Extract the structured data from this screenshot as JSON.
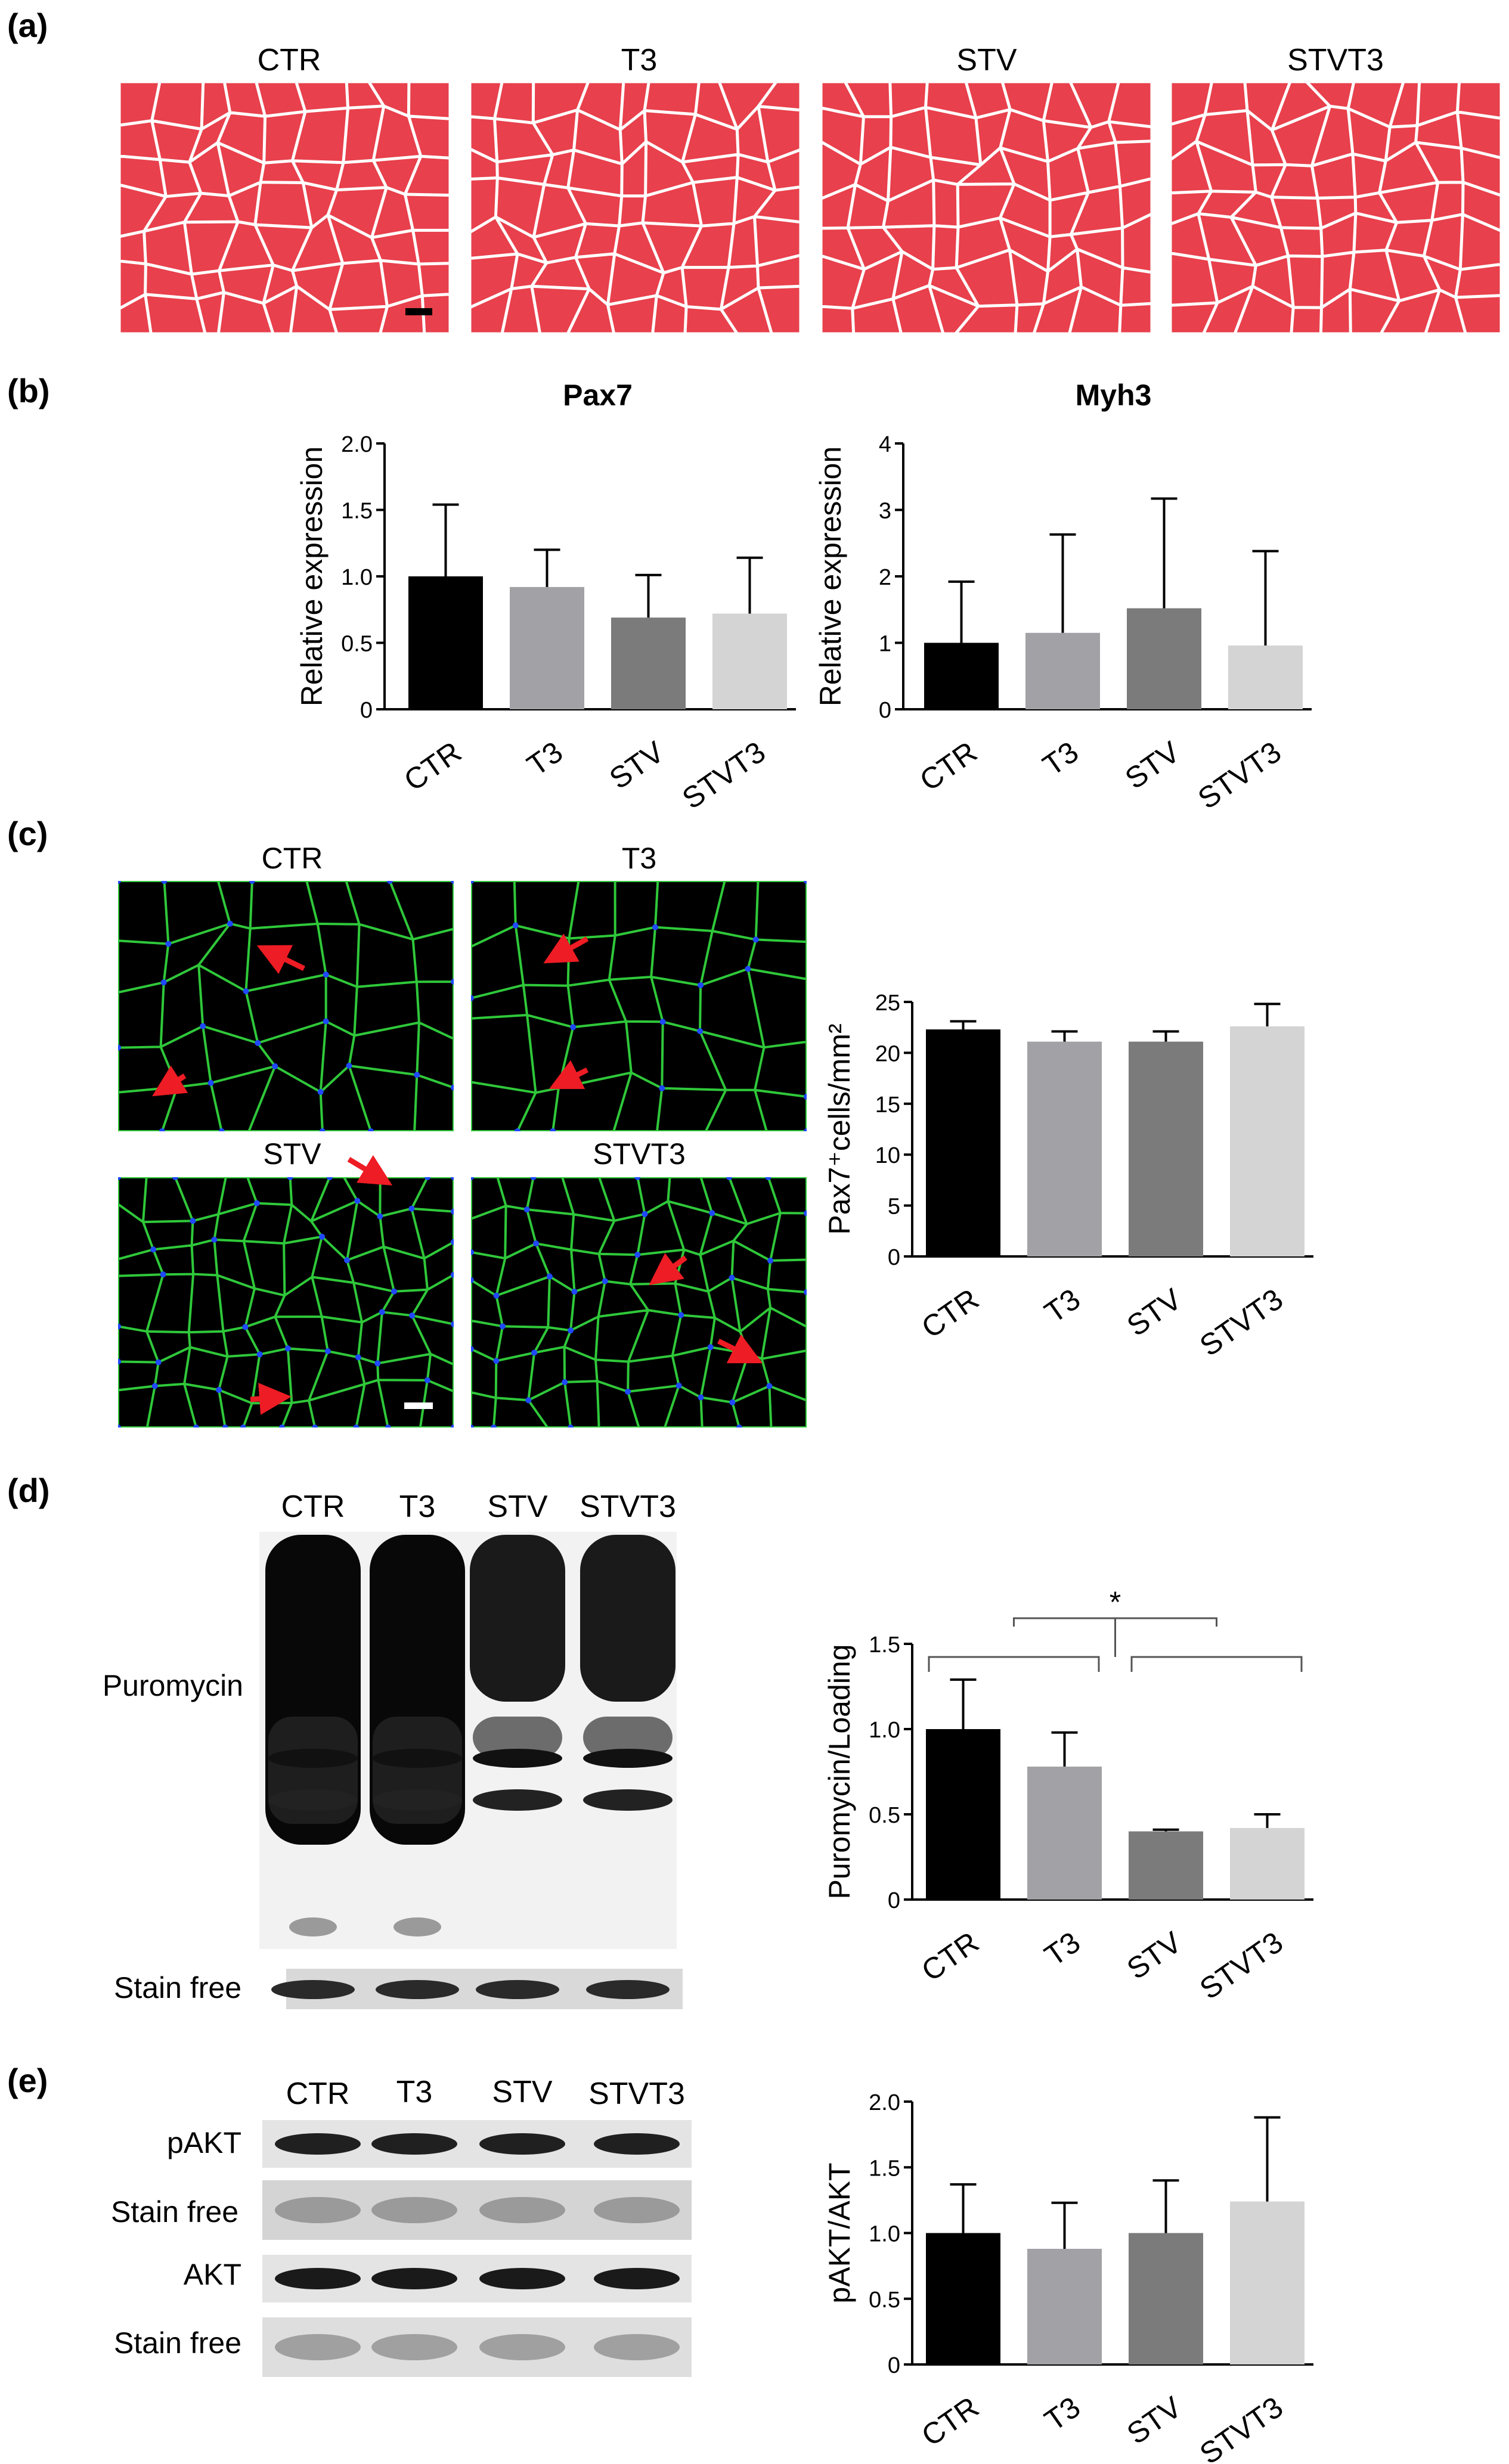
{
  "panel_labels": [
    "(a)",
    "(b)",
    "(c)",
    "(d)",
    "(e)"
  ],
  "groups": [
    "CTR",
    "T3",
    "STV",
    "STVT3"
  ],
  "bar_colors": [
    "#000000",
    "#a2a2a6",
    "#7b7b7b",
    "#d4d4d4"
  ],
  "panel_a": {
    "image_titles": [
      "CTR",
      "T3",
      "STV",
      "STVT3"
    ],
    "tissue_color": "#e8404c",
    "membrane_color": "#ffffff"
  },
  "panel_c": {
    "image_titles": [
      "CTR",
      "T3",
      "STV",
      "STVT3"
    ],
    "membrane_color": "#2fc83a",
    "nuclei_color": "#1f48ff",
    "arrow_color": "#ee1c24"
  },
  "panel_d": {
    "lane_labels": [
      "CTR",
      "T3",
      "STV",
      "STVT3"
    ],
    "blot_labels": [
      "Puromycin",
      "Stain free"
    ],
    "significance_mark": "*"
  },
  "panel_e": {
    "lane_labels": [
      "CTR",
      "T3",
      "STV",
      "STVT3"
    ],
    "blot_labels": [
      "pAKT",
      "Stain free",
      "AKT",
      "Stain free"
    ]
  },
  "chart_data": [
    {
      "id": "pax7",
      "panel": "(b)",
      "type": "bar",
      "title": "Pax7",
      "ylabel": "Relative expression",
      "categories": [
        "CTR",
        "T3",
        "STV",
        "STVT3"
      ],
      "values": [
        1.0,
        0.92,
        0.69,
        0.72
      ],
      "errors": [
        0.54,
        0.28,
        0.32,
        0.42
      ],
      "ylim": [
        0,
        2.0
      ],
      "yticks": [
        "0",
        "0.5",
        "1.0",
        "1.5",
        "2.0"
      ],
      "ytick_values": [
        0,
        0.5,
        1.0,
        1.5,
        2.0
      ]
    },
    {
      "id": "myh3",
      "panel": "(b)",
      "type": "bar",
      "title": "Myh3",
      "ylabel": "Relative expression",
      "categories": [
        "CTR",
        "T3",
        "STV",
        "STVT3"
      ],
      "values": [
        1.0,
        1.15,
        1.52,
        0.96
      ],
      "errors": [
        0.92,
        1.48,
        1.65,
        1.42
      ],
      "ylim": [
        0,
        4
      ],
      "yticks": [
        "0",
        "1",
        "2",
        "3",
        "4"
      ],
      "ytick_values": [
        0,
        1,
        2,
        3,
        4
      ]
    },
    {
      "id": "pax7cells",
      "panel": "(c)",
      "type": "bar",
      "title": "",
      "ylabel": "Pax7⁺cells/mm²",
      "categories": [
        "CTR",
        "T3",
        "STV",
        "STVT3"
      ],
      "values": [
        22.3,
        21.1,
        21.1,
        22.6
      ],
      "errors": [
        0.8,
        1.0,
        1.0,
        2.2
      ],
      "ylim": [
        0,
        25
      ],
      "yticks": [
        "0",
        "5",
        "10",
        "15",
        "20",
        "25"
      ],
      "ytick_values": [
        0,
        5,
        10,
        15,
        20,
        25
      ]
    },
    {
      "id": "puromycin",
      "panel": "(d)",
      "type": "bar",
      "title": "",
      "ylabel": "Puromycin/Loading",
      "categories": [
        "CTR",
        "T3",
        "STV",
        "STVT3"
      ],
      "values": [
        1.0,
        0.78,
        0.4,
        0.42
      ],
      "errors": [
        0.29,
        0.2,
        0.01,
        0.08
      ],
      "ylim": [
        0,
        1.5
      ],
      "yticks": [
        "0",
        "0.5",
        "1.0",
        "1.5"
      ],
      "ytick_values": [
        0,
        0.5,
        1.0,
        1.5
      ]
    },
    {
      "id": "pakt",
      "panel": "(e)",
      "type": "bar",
      "title": "",
      "ylabel": "pAKT/AKT",
      "categories": [
        "CTR",
        "T3",
        "STV",
        "STVT3"
      ],
      "values": [
        1.0,
        0.88,
        1.0,
        1.24
      ],
      "errors": [
        0.37,
        0.35,
        0.4,
        0.64
      ],
      "ylim": [
        0,
        2.0
      ],
      "yticks": [
        "0",
        "0.5",
        "1.0",
        "1.5",
        "2.0"
      ],
      "ytick_values": [
        0,
        0.5,
        1.0,
        1.5,
        2.0
      ]
    }
  ]
}
